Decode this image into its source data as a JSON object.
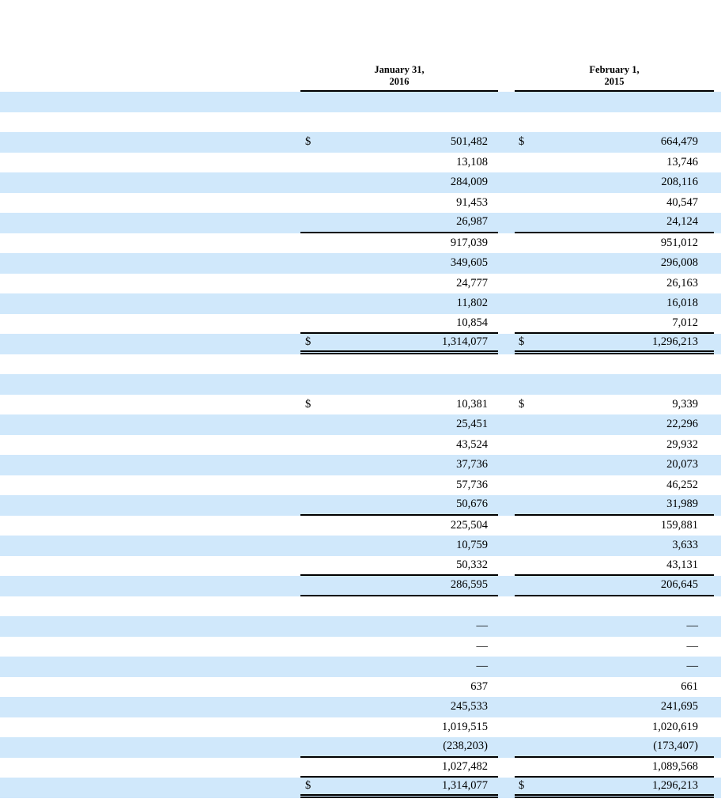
{
  "colors": {
    "stripe": "#d0e8fb",
    "rule": "#000000",
    "text": "#000000"
  },
  "table": {
    "dollar_symbol": "$",
    "col_headers": [
      {
        "line1": "January 31,",
        "line2": "2016"
      },
      {
        "line1": "February 1,",
        "line2": "2015"
      }
    ],
    "rows": [
      {
        "bg": "b",
        "v1": "",
        "v2": ""
      },
      {
        "bg": "w",
        "v1": "",
        "v2": ""
      },
      {
        "bg": "b",
        "dollar": true,
        "v1": "501,482",
        "v2": "664,479"
      },
      {
        "bg": "w",
        "v1": "13,108",
        "v2": "13,746"
      },
      {
        "bg": "b",
        "v1": "284,009",
        "v2": "208,116"
      },
      {
        "bg": "w",
        "v1": "91,453",
        "v2": "40,547"
      },
      {
        "bg": "b",
        "v1": "26,987",
        "v2": "24,124",
        "rule": "s"
      },
      {
        "bg": "w",
        "v1": "917,039",
        "v2": "951,012"
      },
      {
        "bg": "b",
        "v1": "349,605",
        "v2": "296,008"
      },
      {
        "bg": "w",
        "v1": "24,777",
        "v2": "26,163"
      },
      {
        "bg": "b",
        "v1": "11,802",
        "v2": "16,018"
      },
      {
        "bg": "w",
        "v1": "10,854",
        "v2": "7,012",
        "rule": "s"
      },
      {
        "bg": "b",
        "dollar": true,
        "v1": "1,314,077",
        "v2": "1,296,213",
        "rule": "d"
      },
      {
        "bg": "w",
        "v1": "",
        "v2": ""
      },
      {
        "bg": "b",
        "v1": "",
        "v2": ""
      },
      {
        "bg": "w",
        "dollar": true,
        "v1": "10,381",
        "v2": "9,339"
      },
      {
        "bg": "b",
        "v1": "25,451",
        "v2": "22,296"
      },
      {
        "bg": "w",
        "v1": "43,524",
        "v2": "29,932"
      },
      {
        "bg": "b",
        "v1": "37,736",
        "v2": "20,073"
      },
      {
        "bg": "w",
        "v1": "57,736",
        "v2": "46,252"
      },
      {
        "bg": "b",
        "v1": "50,676",
        "v2": "31,989",
        "rule": "s"
      },
      {
        "bg": "w",
        "v1": "225,504",
        "v2": "159,881"
      },
      {
        "bg": "b",
        "v1": "10,759",
        "v2": "3,633"
      },
      {
        "bg": "w",
        "v1": "50,332",
        "v2": "43,131",
        "rule": "s"
      },
      {
        "bg": "b",
        "v1": "286,595",
        "v2": "206,645",
        "rule": "s"
      },
      {
        "bg": "w",
        "v1": "",
        "v2": ""
      },
      {
        "bg": "b",
        "v1": "—",
        "v2": "—"
      },
      {
        "bg": "w",
        "v1": "—",
        "v2": "—"
      },
      {
        "bg": "b",
        "v1": "—",
        "v2": "—"
      },
      {
        "bg": "w",
        "v1": "637",
        "v2": "661"
      },
      {
        "bg": "b",
        "v1": "245,533",
        "v2": "241,695"
      },
      {
        "bg": "w",
        "v1": "1,019,515",
        "v2": "1,020,619"
      },
      {
        "bg": "b",
        "v1": "(238,203)",
        "v2": "(173,407)",
        "rule": "s"
      },
      {
        "bg": "w",
        "v1": "1,027,482",
        "v2": "1,089,568",
        "rule": "s"
      },
      {
        "bg": "b",
        "dollar": true,
        "v1": "1,314,077",
        "v2": "1,296,213",
        "rule": "d"
      }
    ]
  }
}
